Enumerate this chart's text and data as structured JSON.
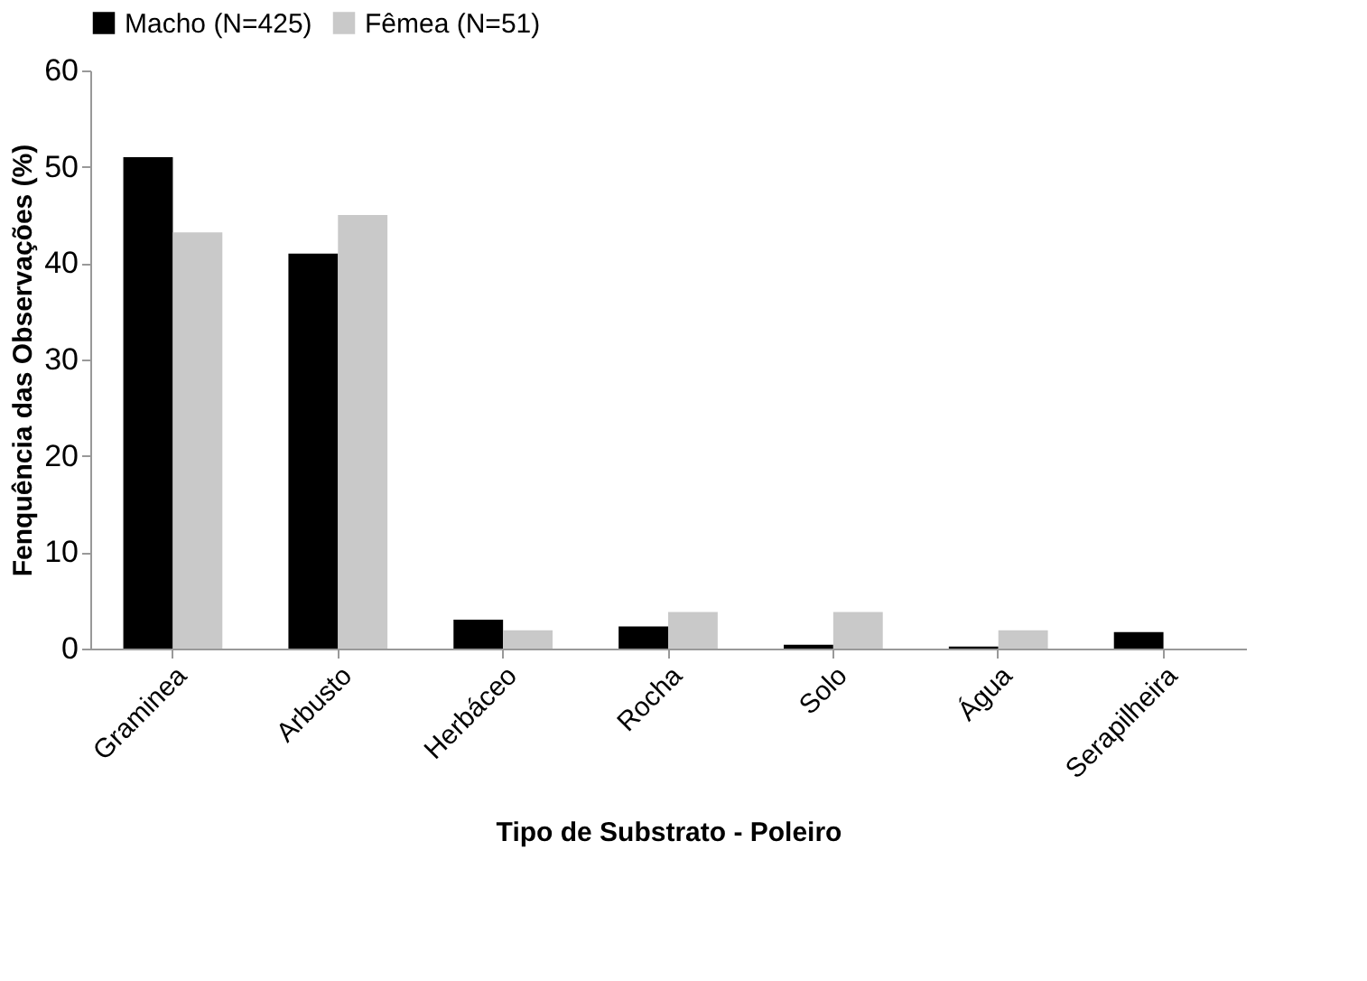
{
  "chart_data": {
    "type": "bar",
    "xlabel": "Tipo de Substrato - Poleiro",
    "ylabel": "Fenquência das Observações (%)",
    "categories": [
      "Graminea",
      "Arbusto",
      "Herbáceo",
      "Rocha",
      "Solo",
      "Água",
      "Serapilheira"
    ],
    "series": [
      {
        "name": "Macho (N=425)",
        "color": "#000000",
        "values": [
          51,
          41,
          3,
          2.3,
          0.4,
          0.2,
          1.7
        ]
      },
      {
        "name": "Fêmea (N=51)",
        "color": "#c9c9c9",
        "values": [
          43.2,
          45,
          1.9,
          3.8,
          3.8,
          1.9,
          0
        ]
      }
    ],
    "ylim": [
      0,
      60
    ],
    "yticks": [
      0,
      10,
      20,
      30,
      40,
      50,
      60
    ],
    "grid": false,
    "legend": "top"
  }
}
